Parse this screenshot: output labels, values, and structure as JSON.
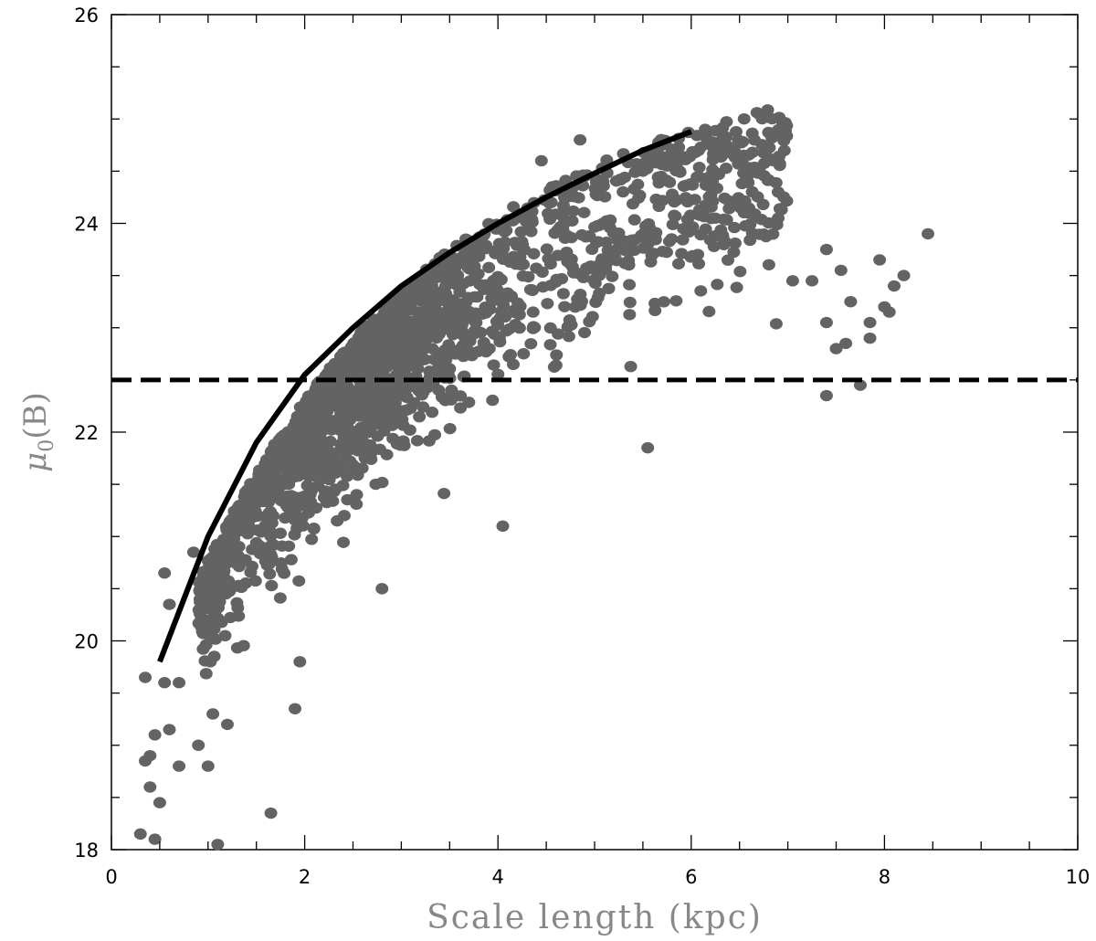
{
  "chart_data": {
    "type": "scatter",
    "title": "",
    "xlabel": "Scale length (kpc)",
    "ylabel_symbol": "μ",
    "ylabel_subscript": "0",
    "ylabel_suffix": "(B)",
    "xlim": [
      0,
      10
    ],
    "ylim": [
      18,
      26
    ],
    "x_ticks": [
      "0",
      "2",
      "4",
      "6",
      "8",
      "10"
    ],
    "y_ticks": [
      "18",
      "20",
      "22",
      "24",
      "26"
    ],
    "grid": false,
    "legend": "none",
    "colors": {
      "points": "#636363",
      "curve": "#000000",
      "dashed": "#000000",
      "axis_title": "#888888"
    },
    "outlier_points": [
      {
        "x": 0.3,
        "y": 18.15
      },
      {
        "x": 0.45,
        "y": 18.1
      },
      {
        "x": 1.1,
        "y": 18.05
      },
      {
        "x": 0.5,
        "y": 18.45
      },
      {
        "x": 0.4,
        "y": 18.6
      },
      {
        "x": 0.35,
        "y": 18.85
      },
      {
        "x": 0.4,
        "y": 18.9
      },
      {
        "x": 0.45,
        "y": 19.1
      },
      {
        "x": 0.6,
        "y": 19.15
      },
      {
        "x": 0.7,
        "y": 18.8
      },
      {
        "x": 1.0,
        "y": 18.8
      },
      {
        "x": 0.9,
        "y": 19.0
      },
      {
        "x": 1.65,
        "y": 18.35
      },
      {
        "x": 1.9,
        "y": 19.35
      },
      {
        "x": 0.35,
        "y": 19.65
      },
      {
        "x": 0.55,
        "y": 19.6
      },
      {
        "x": 0.7,
        "y": 19.6
      },
      {
        "x": 1.05,
        "y": 19.3
      },
      {
        "x": 1.2,
        "y": 19.2
      },
      {
        "x": 1.95,
        "y": 19.8
      },
      {
        "x": 0.55,
        "y": 20.65
      },
      {
        "x": 0.6,
        "y": 20.35
      },
      {
        "x": 0.85,
        "y": 20.85
      },
      {
        "x": 2.8,
        "y": 20.5
      },
      {
        "x": 4.05,
        "y": 21.1
      },
      {
        "x": 4.85,
        "y": 24.8
      },
      {
        "x": 4.45,
        "y": 24.6
      },
      {
        "x": 5.75,
        "y": 24.55
      },
      {
        "x": 5.5,
        "y": 24.5
      },
      {
        "x": 8.45,
        "y": 23.9
      },
      {
        "x": 8.2,
        "y": 23.5
      },
      {
        "x": 8.1,
        "y": 23.4
      },
      {
        "x": 7.95,
        "y": 23.65
      },
      {
        "x": 7.55,
        "y": 23.55
      },
      {
        "x": 7.4,
        "y": 23.75
      },
      {
        "x": 7.65,
        "y": 23.25
      },
      {
        "x": 8.0,
        "y": 23.2
      },
      {
        "x": 8.05,
        "y": 23.15
      },
      {
        "x": 7.4,
        "y": 23.05
      },
      {
        "x": 7.85,
        "y": 23.05
      },
      {
        "x": 7.5,
        "y": 22.8
      },
      {
        "x": 7.6,
        "y": 22.85
      },
      {
        "x": 7.85,
        "y": 22.9
      },
      {
        "x": 7.4,
        "y": 22.35
      },
      {
        "x": 7.75,
        "y": 22.45
      },
      {
        "x": 5.55,
        "y": 21.85
      },
      {
        "x": 6.25,
        "y": 24.05
      },
      {
        "x": 6.9,
        "y": 24.05
      },
      {
        "x": 7.25,
        "y": 23.45
      },
      {
        "x": 7.05,
        "y": 23.45
      }
    ],
    "cloud_sample_size": 1900,
    "series": [
      {
        "kind": "solid-line",
        "x": [
          0.5,
          1.0,
          1.5,
          2.0,
          2.5,
          3.0,
          3.5,
          4.0,
          4.5,
          5.0,
          5.5,
          6.0
        ],
        "y": [
          19.8,
          21.0,
          21.9,
          22.55,
          23.0,
          23.4,
          23.72,
          24.0,
          24.25,
          24.48,
          24.7,
          24.88
        ]
      },
      {
        "kind": "dashed-line",
        "x": [
          0,
          10
        ],
        "y": [
          22.5,
          22.5
        ]
      }
    ]
  }
}
